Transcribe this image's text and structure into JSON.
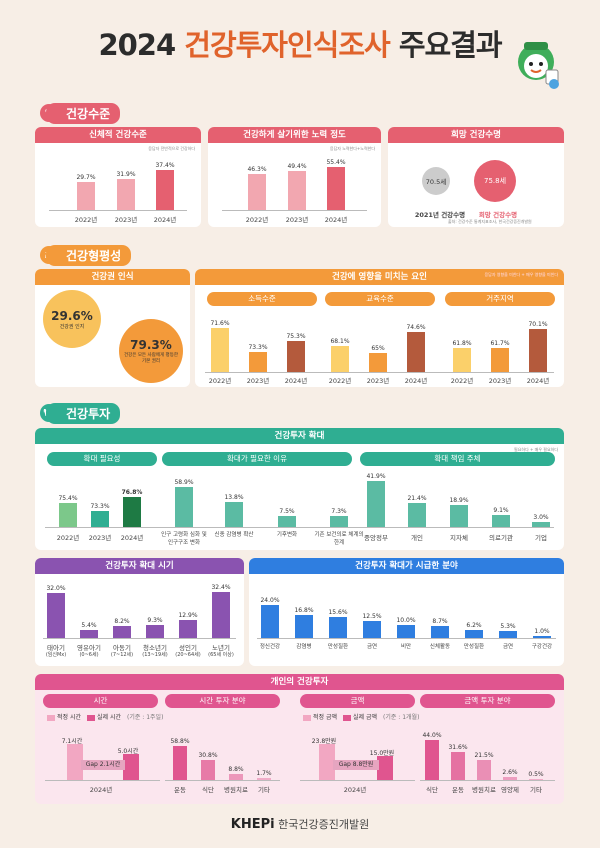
{
  "title": {
    "year": "2024",
    "main": "건강투자인식조사",
    "tail": "주요결과"
  },
  "colors": {
    "red": "#e56070",
    "orange": "#f39a3a",
    "teal": "#2fae92",
    "purple": "#8a53b0",
    "blue": "#2f7ee0",
    "pink": "#e0558f"
  },
  "health": {
    "label": "건강수준",
    "p1": {
      "title": "신체적 건강수준",
      "legend": "응답자 전반적으로 건강하다",
      "years": [
        "2022년",
        "2023년",
        "2024년"
      ],
      "values": [
        "29.7%",
        "31.9%",
        "37.4%"
      ]
    },
    "p2": {
      "title": "건강하게 살기위한 노력 정도",
      "legend": "응답자 노력한다+노력한다",
      "years": [
        "2022년",
        "2023년",
        "2024년"
      ],
      "values": [
        "46.3%",
        "49.4%",
        "55.4%"
      ]
    },
    "p3": {
      "title": "희망 건강수명",
      "c1": "70.5세",
      "c2": "75.8세",
      "l1": "2021년 건강수명",
      "l2": "희망 건강수명",
      "note": "출처: 건강수준 통계지표조사, 한국건강증진개발원"
    }
  },
  "equity": {
    "label": "건강형평성",
    "recog": {
      "title": "건강권 인식",
      "v1": "29.6%",
      "t1": "건강권 인지",
      "v2": "79.3%",
      "t2": "건강은 모든 사람에게 평등한 기본 권리"
    },
    "factors": {
      "title": "건강에 영향을 미치는 요인",
      "legend": "응답자 영향을 미친다 + 매우 영향을 미친다",
      "g1": {
        "title": "소득수준",
        "values": [
          "71.6%",
          "73.3%",
          "75.3%"
        ]
      },
      "g2": {
        "title": "교육수준",
        "values": [
          "68.1%",
          "65%",
          "74.6%"
        ]
      },
      "g3": {
        "title": "거주지역",
        "values": [
          "61.8%",
          "61.7%",
          "70.1%"
        ]
      },
      "years": [
        "2022년",
        "2023년",
        "2024년"
      ]
    }
  },
  "invest": {
    "label": "건강투자",
    "expand": {
      "title": "건강투자 확대",
      "legend": "필요하다 + 매우 필요하다",
      "need": {
        "title": "확대 필요성",
        "years": [
          "2022년",
          "2023년",
          "2024년"
        ],
        "values": [
          "75.4%",
          "73.3%",
          "76.8%"
        ]
      },
      "reason": {
        "title": "확대가 필요한 이유",
        "labels": [
          "인구 고령화 심화 및 인구구조 변화",
          "신종 감염병 확산",
          "기후변화",
          "기존 보건의료 체계의 한계"
        ],
        "values": [
          "58.9%",
          "13.8%",
          "7.5%",
          "7.3%"
        ]
      },
      "resp": {
        "title": "확대 책임 주체",
        "labels": [
          "중앙정부",
          "개인",
          "지자체",
          "의료기관",
          "기업"
        ],
        "values": [
          "41.9%",
          "21.4%",
          "18.9%",
          "9.1%",
          "3.0%"
        ]
      }
    },
    "timing": {
      "title": "건강투자 확대 시기",
      "labels": [
        "태아기",
        "영유아기",
        "아동기",
        "청소년기",
        "성인기",
        "노년기"
      ],
      "sub": [
        "(임신Mx)",
        "(0~6세)",
        "(7~12세)",
        "(13~19세)",
        "(20~64세)",
        "(65세 이상)"
      ],
      "values": [
        "32.0%",
        "5.4%",
        "8.2%",
        "9.3%",
        "12.9%",
        "32.4%"
      ]
    },
    "urgent": {
      "title": "건강투자 확대가 시급한 분야",
      "labels": [
        "정신건강",
        "감염병",
        "만성질환",
        "금연",
        "비만",
        "신체활동",
        "만성질환",
        "금연",
        "구강건강"
      ],
      "values": [
        "24.0%",
        "16.8%",
        "15.6%",
        "12.5%",
        "10.0%",
        "8.7%",
        "6.2%",
        "5.3%",
        "1.0%"
      ]
    }
  },
  "personal": {
    "title": "개인의 건강투자",
    "time": {
      "title": "시간",
      "leg1": "적정 시간",
      "leg2": "실제 시간",
      "unit": "(기준 : 1주일)",
      "v1": "7.1시간",
      "v2": "5.0시간",
      "gap": "Gap 2.1시간",
      "year": "2024년"
    },
    "timeArea": {
      "title": "시간 투자 분야",
      "labels": [
        "운동",
        "식단",
        "병원치료",
        "기타"
      ],
      "values": [
        "58.8%",
        "30.8%",
        "8.8%",
        "1.7%"
      ]
    },
    "money": {
      "title": "금액",
      "leg1": "적정 금액",
      "leg2": "실제 금액",
      "unit": "(기준 : 1개월)",
      "v1": "23.8만원",
      "v2": "15.0만원",
      "gap": "Gap 8.8만원",
      "year": "2024년"
    },
    "moneyArea": {
      "title": "금액 투자 분야",
      "labels": [
        "식단",
        "운동",
        "병원치료",
        "영양제",
        "기타"
      ],
      "values": [
        "44.0%",
        "31.6%",
        "21.5%",
        "2.6%",
        "0.5%"
      ]
    }
  },
  "footer": {
    "logo": "KHEPi",
    "org": "한국건강증진개발원"
  }
}
